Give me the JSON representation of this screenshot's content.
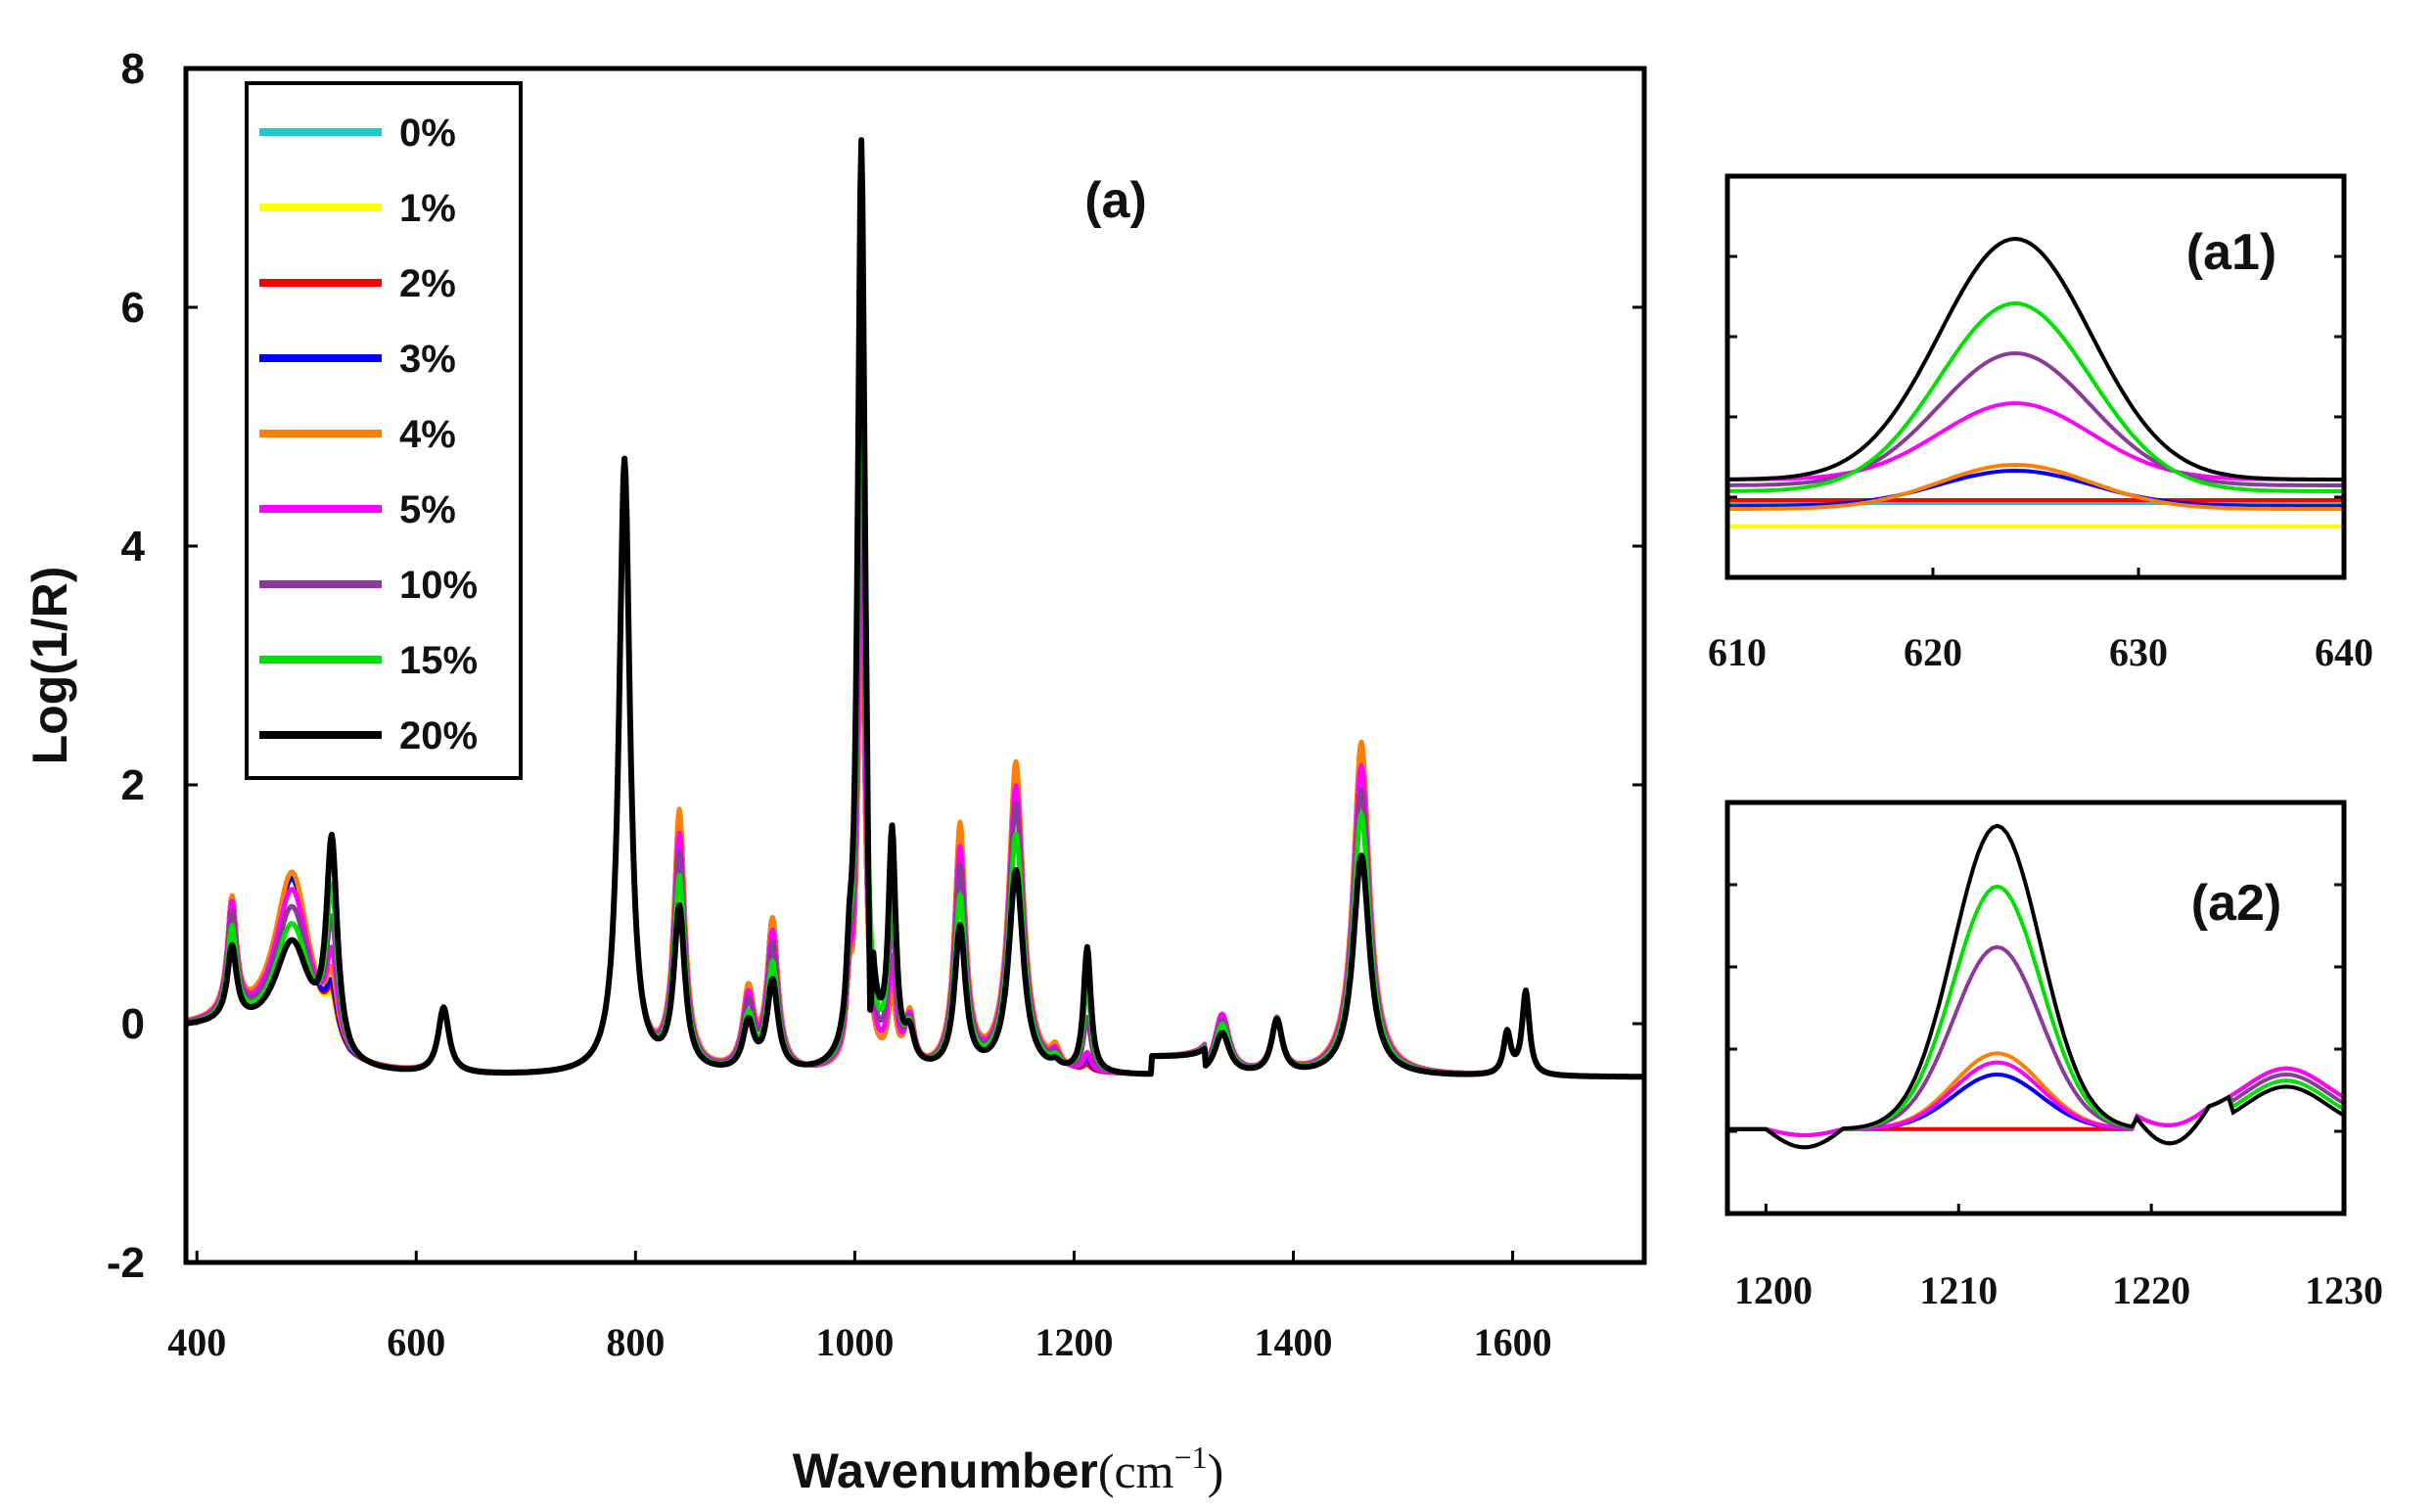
{
  "chart_data": [
    {
      "id": "a",
      "type": "line",
      "panel_label": "(a)",
      "xlabel": "Wavenumber",
      "xlabel_unit": "(cm",
      "xlabel_unit_exp": "−1",
      "xlabel_unit_close": ")",
      "ylabel": "Log(1/R)",
      "xlim": [
        390,
        1720
      ],
      "ylim": [
        -2,
        8
      ],
      "x_ticks": [
        400,
        600,
        800,
        1000,
        1200,
        1400,
        1600
      ],
      "x_tick_labels": [
        "400",
        "600",
        "800",
        "1000",
        "1200",
        "1400",
        "1600"
      ],
      "y_ticks": [
        -2,
        0,
        2,
        4,
        6,
        8
      ],
      "y_tick_labels": [
        "-2",
        "0",
        "2",
        "4",
        "6",
        "8"
      ],
      "legend_position": "top-left",
      "peaks": [
        {
          "center": 432,
          "width": 5,
          "scale": [
            0.95,
            0.95,
            0.95,
            0.95,
            0.95,
            0.92,
            0.85,
            0.75,
            0.6
          ]
        },
        {
          "center": 487,
          "width": 20,
          "scale": [
            1.45,
            1.45,
            1.45,
            1.45,
            1.5,
            1.35,
            1.2,
            1.05,
            0.9
          ]
        },
        {
          "center": 523,
          "width": 6,
          "scale": [
            0.3,
            0.3,
            0.35,
            0.4,
            0.5,
            0.7,
            1.0,
            1.3,
            1.75
          ]
        },
        {
          "center": 625,
          "width": 6,
          "scale": [
            0.55,
            0.55,
            0.55,
            0.55,
            0.55,
            0.55,
            0.55,
            0.55,
            0.55
          ]
        },
        {
          "center": 790,
          "width": 6,
          "scale": [
            5.1,
            5.1,
            5.1,
            5.1,
            5.1,
            5.1,
            5.1,
            5.1,
            5.15
          ]
        },
        {
          "center": 840,
          "width": 6,
          "scale": [
            2.1,
            2.1,
            2.1,
            2.1,
            2.15,
            1.95,
            1.8,
            1.6,
            1.35
          ]
        },
        {
          "center": 903,
          "width": 6,
          "scale": [
            0.65,
            0.65,
            0.65,
            0.65,
            0.65,
            0.6,
            0.55,
            0.45,
            0.4
          ]
        },
        {
          "center": 925,
          "width": 6,
          "scale": [
            1.25,
            1.25,
            1.25,
            1.25,
            1.25,
            1.15,
            1.05,
            0.9,
            0.75
          ]
        },
        {
          "center": 995,
          "width": 3,
          "scale": [
            0.5,
            0.5,
            0.5,
            0.5,
            0.5,
            0.5,
            0.5,
            0.5,
            0.5
          ]
        },
        {
          "center": 1006,
          "width": 4,
          "scale": [
            4.0,
            4.0,
            4.0,
            4.0,
            4.0,
            4.6,
            5.5,
            6.5,
            7.75
          ]
        },
        {
          "center": 1034,
          "width": 4,
          "scale": [
            0.6,
            0.6,
            0.6,
            0.6,
            0.6,
            0.85,
            1.2,
            1.55,
            1.9
          ]
        },
        {
          "center": 1050,
          "width": 5,
          "scale": [
            0.45,
            0.45,
            0.45,
            0.45,
            0.45,
            0.4,
            0.35,
            0.3,
            0.25
          ]
        },
        {
          "center": 1096,
          "width": 6,
          "scale": [
            2.0,
            2.0,
            2.0,
            2.0,
            2.05,
            1.85,
            1.7,
            1.45,
            1.2
          ]
        },
        {
          "center": 1147,
          "width": 8,
          "scale": [
            2.55,
            2.55,
            2.55,
            2.55,
            2.6,
            2.4,
            2.25,
            2.0,
            1.7
          ]
        },
        {
          "center": 1183,
          "width": 5,
          "scale": [
            0.15,
            0.15,
            0.15,
            0.15,
            0.15,
            0.12,
            0.1,
            0.08,
            0.05
          ]
        },
        {
          "center": 1212,
          "width": 4,
          "scale": [
            0.05,
            0.05,
            0.05,
            0.1,
            0.15,
            0.15,
            0.45,
            0.75,
            1.05
          ]
        },
        {
          "center": 1335,
          "width": 8,
          "scale": [
            0.5,
            0.5,
            0.5,
            0.5,
            0.5,
            0.5,
            0.45,
            0.42,
            0.35
          ]
        },
        {
          "center": 1385,
          "width": 6,
          "scale": [
            0.45,
            0.45,
            0.45,
            0.45,
            0.45,
            0.45,
            0.45,
            0.45,
            0.45
          ]
        },
        {
          "center": 1462,
          "width": 9,
          "scale": [
            2.75,
            2.75,
            2.75,
            2.75,
            2.8,
            2.6,
            2.4,
            2.2,
            1.85
          ]
        },
        {
          "center": 1595,
          "width": 4,
          "scale": [
            0.35,
            0.35,
            0.35,
            0.35,
            0.35,
            0.35,
            0.35,
            0.35,
            0.35
          ]
        },
        {
          "center": 1612,
          "width": 4,
          "scale": [
            0.7,
            0.7,
            0.7,
            0.7,
            0.7,
            0.7,
            0.7,
            0.7,
            0.7
          ]
        }
      ]
    },
    {
      "id": "a1",
      "type": "line",
      "panel_label": "(a1)",
      "xlim": [
        610,
        640
      ],
      "ylim": [
        0,
        1
      ],
      "x_ticks": [
        610,
        620,
        630,
        640
      ],
      "x_tick_labels": [
        "610",
        "620",
        "630",
        "640"
      ],
      "peak_center": 624,
      "peak_width": 5.2,
      "heights": [
        0.0,
        0.0,
        0.0,
        0.12,
        0.15,
        0.26,
        0.45,
        0.64,
        0.82
      ],
      "baselines": [
        0.12,
        0.04,
        0.13,
        0.11,
        0.1,
        0.2,
        0.18,
        0.16,
        0.2
      ]
    },
    {
      "id": "a2",
      "type": "line",
      "panel_label": "(a2)",
      "xlim": [
        1198,
        1230
      ],
      "ylim": [
        0,
        1
      ],
      "x_ticks": [
        1200,
        1210,
        1220,
        1230
      ],
      "x_tick_labels": [
        "1200",
        "1210",
        "1220",
        "1230"
      ],
      "peak_center": 1212,
      "peak_width": 3.2,
      "heights": [
        0.0,
        0.0,
        0.0,
        0.18,
        0.25,
        0.22,
        0.6,
        0.8,
        1.0
      ]
    }
  ],
  "series": [
    {
      "name": "0%",
      "color": "#1EC8C8"
    },
    {
      "name": "1%",
      "color": "#FFFF00"
    },
    {
      "name": "2%",
      "color": "#FF0000"
    },
    {
      "name": "3%",
      "color": "#0000FF"
    },
    {
      "name": "4%",
      "color": "#FF8000"
    },
    {
      "name": "5%",
      "color": "#FF00FF"
    },
    {
      "name": "10%",
      "color": "#8B3A9B"
    },
    {
      "name": "15%",
      "color": "#00E000"
    },
    {
      "name": "20%",
      "color": "#000000"
    }
  ]
}
